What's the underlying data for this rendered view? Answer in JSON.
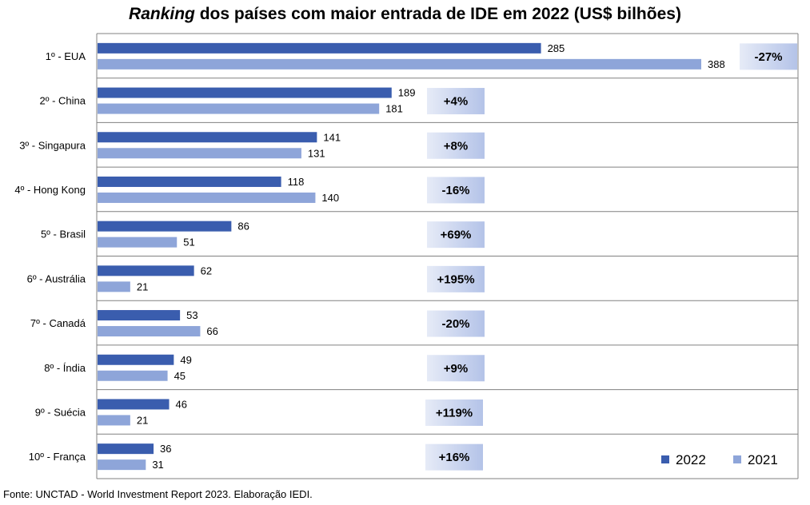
{
  "title": {
    "italic_part": "Ranking",
    "rest": " dos países com maior entrada de IDE em 2022 (US$ bilhões)"
  },
  "source": "Fonte: UNCTAD - World Investment Report 2023. Elaboração IEDI.",
  "colors": {
    "series_2022": "#3A5DAE",
    "series_2021": "#8EA5D9",
    "gridline": "#808080",
    "badge_light": "#E6EBF7",
    "badge_dark": "#B4C3E8"
  },
  "chart_data": {
    "type": "bar",
    "orientation": "horizontal",
    "categories": [
      "1º - EUA",
      "2º - China",
      "3º - Singapura",
      "4º - Hong Kong",
      "5º - Brasil",
      "6º - Austrália",
      "7º - Canadá",
      "8º - Índia",
      "9º - Suécia",
      "10º - França"
    ],
    "series": [
      {
        "name": "2022",
        "values": [
          285,
          189,
          141,
          118,
          86,
          62,
          53,
          49,
          46,
          36
        ]
      },
      {
        "name": "2021",
        "values": [
          388,
          181,
          131,
          140,
          51,
          21,
          66,
          45,
          21,
          31
        ]
      }
    ],
    "changes": [
      "-27%",
      "+4%",
      "+8%",
      "-16%",
      "+69%",
      "+195%",
      "-20%",
      "+9%",
      "+119%",
      "+16%"
    ],
    "xlim": [
      0,
      400
    ],
    "grid": "horizontal-separators",
    "legend": "bottom-right"
  }
}
